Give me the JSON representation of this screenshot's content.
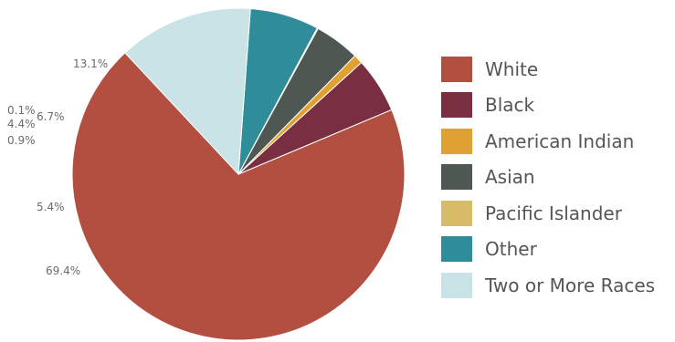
{
  "chart_data": {
    "type": "pie",
    "title": "",
    "slices": [
      {
        "name": "White",
        "value": 69.4,
        "label": "69.4%",
        "color": "#b34f41"
      },
      {
        "name": "Black",
        "value": 5.4,
        "label": "5.4%",
        "color": "#7a2e42"
      },
      {
        "name": "American Indian",
        "value": 0.9,
        "label": "0.9%",
        "color": "#e0a132"
      },
      {
        "name": "Asian",
        "value": 4.4,
        "label": "4.4%",
        "color": "#4f5753"
      },
      {
        "name": "Pacific Islander",
        "value": 0.1,
        "label": "0.1%",
        "color": "#d8bb67"
      },
      {
        "name": "Other",
        "value": 6.7,
        "label": "6.7%",
        "color": "#2f8c99"
      },
      {
        "name": "Two or More Races",
        "value": 13.1,
        "label": "13.1%",
        "color": "#c9e3e6"
      }
    ],
    "legend_position": "right"
  }
}
